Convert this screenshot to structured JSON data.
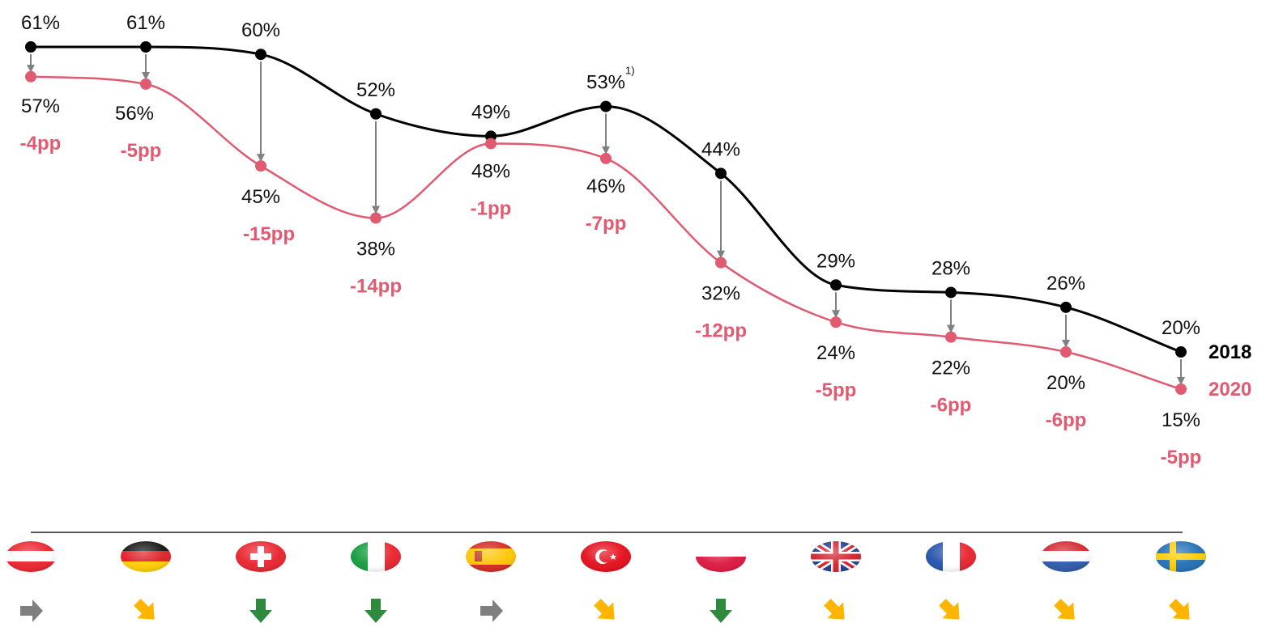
{
  "chart_data": {
    "type": "line",
    "categories": [
      "Austria",
      "Germany",
      "Switzerland",
      "Italy",
      "Spain",
      "Turkey",
      "Poland",
      "United Kingdom",
      "France",
      "Netherlands",
      "Sweden"
    ],
    "series": [
      {
        "name": "2018",
        "color": "#000000",
        "values": [
          61,
          61,
          60,
          52,
          49,
          53,
          44,
          29,
          28,
          26,
          20
        ],
        "labels": [
          "61%",
          "61%",
          "60%",
          "52%",
          "49%",
          "53%",
          "44%",
          "29%",
          "28%",
          "26%",
          "20%"
        ]
      },
      {
        "name": "2020",
        "color": "#e05a70",
        "values": [
          57,
          56,
          45,
          38,
          48,
          46,
          32,
          24,
          22,
          20,
          15
        ],
        "labels": [
          "57%",
          "56%",
          "45%",
          "38%",
          "48%",
          "46%",
          "32%",
          "24%",
          "22%",
          "20%",
          "15%"
        ]
      }
    ],
    "changes": [
      "-4pp",
      "-5pp",
      "-15pp",
      "-14pp",
      "-1pp",
      "-7pp",
      "-12pp",
      "-5pp",
      "-6pp",
      "-6pp",
      "-5pp"
    ],
    "footnote_marker": "1)",
    "footnote_index": 5,
    "trend_arrows": [
      "right",
      "down-right",
      "down",
      "down",
      "right",
      "down-right",
      "down",
      "down-right",
      "down-right",
      "down-right",
      "down-right"
    ],
    "trend_colors": {
      "right": "#7f7f7f",
      "down-right": "#ffb400",
      "down": "#2e8b3e"
    },
    "flags": [
      "austria-flag",
      "germany-flag",
      "switzerland-flag",
      "italy-flag",
      "spain-flag",
      "turkey-flag",
      "poland-flag",
      "united-kingdom-flag",
      "france-flag",
      "netherlands-flag",
      "sweden-flag"
    ],
    "ylim": [
      10,
      65
    ],
    "grid": false,
    "legend": "right, inline at line ends"
  }
}
